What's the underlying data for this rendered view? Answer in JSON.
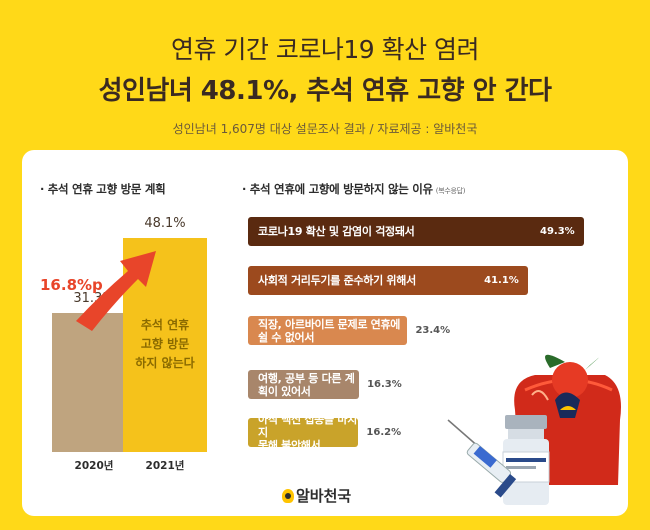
{
  "header": {
    "title_line1": "연휴 기간 코로나19 확산 염려",
    "title_line2": "성인남녀 48.1%, 추석 연휴 고향 안 간다",
    "subtitle": "성인남녀 1,607명 대상 설문조사 결과 / 자료제공 : 알바천국"
  },
  "footer": {
    "logo_text": "알바천국"
  },
  "colors": {
    "background": "#ffd918",
    "accent_red": "#e8452a",
    "bar_2020": "#bfa47f",
    "bar_2021": "#f5c21b"
  },
  "chart_data": [
    {
      "type": "bar",
      "title": "· 추석 연휴 고향 방문 계획",
      "categories": [
        "2020년",
        "2021년"
      ],
      "values": [
        31.3,
        48.1
      ],
      "value_labels": [
        "31.3%",
        "48.1%"
      ],
      "series": [
        {
          "name": "추석 연휴\n고향 방문\n하지 않는다",
          "values": [
            31.3,
            48.1
          ]
        }
      ],
      "annotation": "16.8%p",
      "ylim": [
        0,
        60
      ]
    },
    {
      "type": "bar",
      "orientation": "horizontal",
      "title": "· 추석 연휴에 고향에 방문하지 않는 이유",
      "note": "(복수응답)",
      "categories": [
        "코로나19 확산 및 감염이 걱정돼서",
        "사회적 거리두기를 준수하기 위해서",
        "직장, 아르바이트 문제로 연휴에 쉴 수 없어서",
        "여행, 공부 등 다른 계획이 있어서",
        "아직 백신 접종을 마치지\n못해 불안해서"
      ],
      "values": [
        49.3,
        41.1,
        23.4,
        16.3,
        16.2
      ],
      "value_labels": [
        "49.3%",
        "41.1%",
        "23.4%",
        "16.3%",
        "16.2%"
      ],
      "colors": [
        "#5a2a10",
        "#9c4a1e",
        "#d9884f",
        "#a8866b",
        "#c9a32a"
      ]
    }
  ]
}
